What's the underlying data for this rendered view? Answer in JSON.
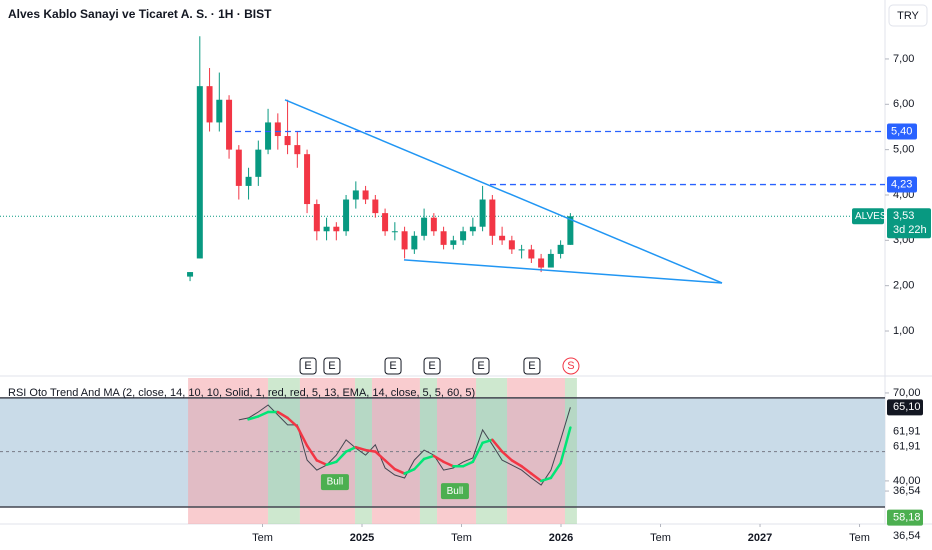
{
  "header": {
    "title": "Alves Kablo Sanayi ve Ticaret A. S. · 1H · BIST",
    "currency": "TRY"
  },
  "chart_data": [
    {
      "type": "candlestick",
      "x": [
        2024.136,
        2024.185,
        2024.234,
        2024.283,
        2024.332,
        2024.381,
        2024.43,
        2024.479,
        2024.528,
        2024.577,
        2024.626,
        2024.675,
        2024.724,
        2024.773,
        2024.822,
        2024.871,
        2024.92,
        2024.969,
        2025.018,
        2025.067,
        2025.116,
        2025.165,
        2025.214,
        2025.263,
        2025.312,
        2025.361,
        2025.41,
        2025.459,
        2025.508,
        2025.557,
        2025.606,
        2025.655,
        2025.704,
        2025.753,
        2025.802,
        2025.851,
        2025.9,
        2025.949,
        2025.998,
        2026.047
      ],
      "open": [
        2.2,
        2.6,
        6.4,
        5.6,
        6.1,
        5.0,
        4.2,
        4.4,
        5.0,
        5.6,
        5.3,
        5.1,
        4.9,
        3.8,
        3.2,
        3.3,
        3.2,
        3.9,
        4.1,
        3.9,
        3.6,
        3.2,
        3.2,
        2.8,
        3.1,
        3.5,
        3.2,
        2.9,
        3.0,
        3.2,
        3.3,
        3.9,
        3.1,
        3.0,
        2.8,
        2.8,
        2.6,
        2.4,
        2.7,
        2.9
      ],
      "high": [
        2.3,
        7.5,
        6.8,
        6.7,
        6.2,
        5.1,
        4.6,
        5.2,
        5.9,
        5.8,
        6.1,
        5.4,
        5.0,
        3.9,
        3.5,
        3.4,
        4.0,
        4.3,
        4.2,
        4.0,
        3.7,
        3.4,
        3.3,
        3.2,
        3.7,
        3.6,
        3.3,
        3.1,
        3.3,
        3.5,
        4.2,
        4.0,
        3.3,
        3.1,
        2.9,
        2.9,
        2.7,
        2.8,
        3.0,
        3.6
      ],
      "low": [
        2.1,
        2.6,
        5.4,
        5.4,
        4.8,
        3.9,
        3.9,
        4.2,
        4.9,
        5.0,
        4.9,
        4.6,
        3.6,
        3.0,
        3.0,
        3.0,
        3.1,
        3.7,
        3.8,
        3.5,
        3.1,
        3.0,
        2.6,
        2.7,
        3.0,
        3.1,
        2.8,
        2.8,
        2.9,
        3.1,
        3.2,
        2.9,
        2.9,
        2.7,
        2.6,
        2.5,
        2.3,
        2.4,
        2.6,
        2.9
      ],
      "close": [
        2.3,
        6.4,
        5.6,
        6.1,
        5.0,
        4.2,
        4.4,
        5.0,
        5.6,
        5.3,
        5.1,
        4.9,
        3.8,
        3.2,
        3.3,
        3.2,
        3.9,
        4.1,
        3.9,
        3.6,
        3.2,
        3.2,
        2.8,
        3.1,
        3.5,
        3.2,
        2.9,
        3.0,
        3.2,
        3.3,
        3.9,
        3.1,
        3.0,
        2.8,
        2.8,
        2.6,
        2.4,
        2.7,
        2.9,
        3.53
      ],
      "up_color": "#089981",
      "down_color": "#f23645",
      "xlim": [
        2023.181,
        2027.628
      ],
      "ylim": [
        0.03,
        8.3
      ],
      "yticks": [
        {
          "value": 1,
          "label": "1,00"
        },
        {
          "value": 2,
          "label": "2,00"
        },
        {
          "value": 3,
          "label": "3,00"
        },
        {
          "value": 4,
          "label": "4,00"
        },
        {
          "value": 5,
          "label": "5,00"
        },
        {
          "value": 6,
          "label": "6,00"
        },
        {
          "value": 7,
          "label": "7,00"
        }
      ],
      "trendlines": [
        {
          "x": [
            2024.613,
            2026.809
          ],
          "y": [
            6.1,
            2.06
          ],
          "color": "#2196f3"
        },
        {
          "x": [
            2025.211,
            2026.809
          ],
          "y": [
            2.57,
            2.06
          ],
          "color": "#2196f3"
        }
      ],
      "levels": [
        {
          "value": 5.4,
          "label": "5,40",
          "start": 2024.362,
          "color": "#2962ff"
        },
        {
          "value": 4.23,
          "label": "4,23",
          "start": 2025.643,
          "color": "#2962ff"
        }
      ],
      "last_price": {
        "symbol": "ALVES",
        "value": 3.53,
        "label": "3,53",
        "countdown": "3d 22h",
        "color": "#089981"
      },
      "events": [
        {
          "label": "E",
          "x": 2024.729
        },
        {
          "label": "E",
          "x": 2024.849
        },
        {
          "label": "E",
          "x": 2025.156
        },
        {
          "label": "E",
          "x": 2025.352
        },
        {
          "label": "E",
          "x": 2025.598
        },
        {
          "label": "E",
          "x": 2025.854
        },
        {
          "label": "S",
          "x": 2026.05
        }
      ]
    },
    {
      "type": "line",
      "title": "RSI Oto Trend And MA (2, close, 14, 10, 10, Solid, 1, red, red, 5, 13, EMA, 14, close, 5, 5, 60, 5)",
      "x": [
        2024.136,
        2024.185,
        2024.234,
        2024.283,
        2024.332,
        2024.381,
        2024.43,
        2024.479,
        2024.528,
        2024.577,
        2024.626,
        2024.675,
        2024.724,
        2024.773,
        2024.822,
        2024.871,
        2024.92,
        2024.969,
        2025.018,
        2025.067,
        2025.116,
        2025.165,
        2025.214,
        2025.263,
        2025.312,
        2025.361,
        2025.41,
        2025.459,
        2025.508,
        2025.557,
        2025.606,
        2025.655,
        2025.704,
        2025.753,
        2025.802,
        2025.851,
        2025.9,
        2025.949,
        2025.998,
        2026.047
      ],
      "series": [
        {
          "color": "#434651",
          "values": [
            null,
            null,
            null,
            null,
            null,
            60.8,
            61.5,
            63.5,
            65.9,
            62.5,
            59.1,
            59.1,
            47.1,
            43.7,
            45.4,
            48.8,
            54.0,
            51.2,
            48.8,
            52.3,
            44.4,
            42.0,
            41.0,
            47.1,
            50.5,
            48.8,
            43.7,
            44.4,
            46.4,
            47.8,
            57.4,
            52.3,
            47.1,
            45.4,
            43.7,
            41.0,
            38.6,
            43.7,
            54.0,
            65.1
          ]
        },
        {
          "up_color": "#00e676",
          "down_color": "#f23645",
          "values": [
            null,
            null,
            null,
            null,
            null,
            null,
            61.0,
            62.0,
            63.5,
            63.5,
            61.5,
            58.5,
            52.0,
            47.0,
            45.5,
            46.5,
            50.0,
            51.5,
            50.5,
            50.0,
            47.0,
            44.0,
            42.5,
            44.0,
            47.5,
            48.5,
            46.5,
            45.0,
            45.0,
            46.5,
            53.0,
            54.0,
            50.0,
            47.0,
            45.0,
            42.5,
            40.0,
            41.0,
            46.0,
            58.18
          ]
        }
      ],
      "xlim": [
        2023.181,
        2027.628
      ],
      "ylim": [
        25.3,
        75.1
      ],
      "yticks": [
        {
          "value": 70,
          "label": "70,00"
        },
        {
          "value": 40,
          "label": "40,00"
        },
        {
          "value": 36.54,
          "label": "36,54"
        }
      ],
      "xticks": [
        {
          "value": 2024.5,
          "label": "Tem"
        },
        2025,
        {
          "value": 2025.5,
          "label": "Tem"
        },
        2026,
        {
          "value": 2026.5,
          "label": "Tem"
        },
        2027,
        {
          "value": 2027.5,
          "label": "Tem"
        }
      ],
      "band": [
        31.1,
        68.3
      ],
      "band_color": "#c9dbe8",
      "midline": 50,
      "zones": [
        {
          "start": 2024.126,
          "end": 2024.528,
          "color": "#f4a3a8"
        },
        {
          "start": 2024.528,
          "end": 2024.688,
          "color": "#a5d6a7"
        },
        {
          "start": 2024.688,
          "end": 2024.965,
          "color": "#f4a3a8"
        },
        {
          "start": 2024.965,
          "end": 2025.05,
          "color": "#a5d6a7"
        },
        {
          "start": 2025.05,
          "end": 2025.291,
          "color": "#f4a3a8"
        },
        {
          "start": 2025.291,
          "end": 2025.377,
          "color": "#a5d6a7"
        },
        {
          "start": 2025.377,
          "end": 2025.573,
          "color": "#f4a3a8"
        },
        {
          "start": 2025.573,
          "end": 2025.729,
          "color": "#a5d6a7"
        },
        {
          "start": 2025.729,
          "end": 2026.02,
          "color": "#f4a3a8"
        },
        {
          "start": 2026.02,
          "end": 2026.08,
          "color": "#a5d6a7"
        }
      ],
      "annotations": [
        {
          "text": "Bull",
          "x": 2024.864,
          "y": 39.6,
          "color": "#4caf50"
        },
        {
          "text": "Bull",
          "x": 2025.467,
          "y": 36.5,
          "color": "#4caf50"
        }
      ],
      "price_labels": [
        {
          "value": 65.1,
          "label": "65,10",
          "color": "#131722"
        },
        {
          "value": 61.91,
          "label": "61,91"
        },
        {
          "value": 61.91,
          "label": "61,91"
        },
        {
          "value": 58.18,
          "label": "58,18",
          "color": "#4caf50"
        },
        {
          "value": 36.54,
          "label": "36,54"
        }
      ]
    }
  ]
}
